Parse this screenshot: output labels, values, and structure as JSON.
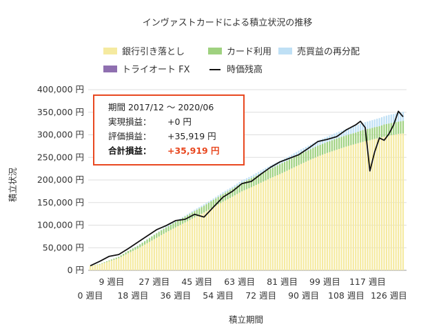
{
  "chart_data": {
    "type": "bar",
    "title": "インヴァストカードによる積立状況の推移",
    "xlabel": "積立期間",
    "ylabel": "積立状況",
    "ylim": [
      0,
      400000
    ],
    "yticks": [
      "0 円",
      "50,000 円",
      "100,000 円",
      "150,000 円",
      "200,000 円",
      "250,000 円",
      "300,000 円",
      "350,000 円",
      "400,000 円"
    ],
    "xticks_row1": [
      "9 週目",
      "27 週目",
      "45 週目",
      "63 週目",
      "81 週目",
      "99 週目",
      "117 週目"
    ],
    "xticks_row2": [
      "0 週目",
      "18 週目",
      "36 週目",
      "54 週目",
      "72 週目",
      "90 週目",
      "108 週目",
      "126 週目"
    ],
    "legend": [
      {
        "name": "銀行引き落とし",
        "color": "#f5eaa0",
        "kind": "box"
      },
      {
        "name": "カード利用",
        "color": "#9fd17f",
        "kind": "box"
      },
      {
        "name": "売買益の再分配",
        "color": "#bfe0f5",
        "kind": "box"
      },
      {
        "name": "トライオート FX",
        "color": "#8f6fb0",
        "kind": "box"
      },
      {
        "name": "時価残高",
        "color": "#111111",
        "kind": "line"
      }
    ],
    "series_weeks": [
      0,
      4,
      8,
      12,
      16,
      20,
      24,
      28,
      32,
      36,
      40,
      44,
      48,
      52,
      56,
      60,
      64,
      68,
      72,
      76,
      80,
      84,
      88,
      92,
      96,
      100,
      104,
      108,
      112,
      114,
      116,
      118,
      120,
      122,
      124,
      126,
      128,
      130,
      132
    ],
    "bank": [
      10000,
      13000,
      20000,
      27000,
      38000,
      48000,
      60000,
      72000,
      84000,
      95000,
      106000,
      117000,
      128000,
      140000,
      152000,
      163000,
      175000,
      184000,
      194000,
      204000,
      213000,
      223000,
      233000,
      243000,
      252000,
      260000,
      267000,
      274000,
      280000,
      283000,
      286000,
      288000,
      291000,
      293000,
      296000,
      298000,
      300000,
      302000,
      303000
    ],
    "card": [
      0,
      1000,
      2000,
      3000,
      5000,
      6000,
      8000,
      10000,
      11000,
      12000,
      13000,
      14000,
      15000,
      16000,
      17000,
      18000,
      19000,
      20000,
      21000,
      21000,
      22000,
      22000,
      23000,
      23000,
      24000,
      24000,
      25000,
      25000,
      25000,
      26000,
      26000,
      26000,
      26000,
      26000,
      27000,
      27000,
      27000,
      27000,
      28000
    ],
    "redistribution": [
      0,
      0,
      0,
      0,
      0,
      1000,
      1000,
      1000,
      2000,
      2000,
      2000,
      3000,
      3000,
      3000,
      4000,
      4000,
      5000,
      5000,
      6000,
      7000,
      7000,
      8000,
      9000,
      10000,
      11000,
      12000,
      13000,
      14000,
      15000,
      16000,
      16000,
      17000,
      17000,
      18000,
      18000,
      19000,
      19000,
      20000,
      20000
    ],
    "market_value": [
      10000,
      20000,
      31000,
      35000,
      48000,
      62000,
      76000,
      90000,
      99000,
      110000,
      113000,
      124000,
      118000,
      140000,
      162000,
      175000,
      192000,
      197000,
      213000,
      228000,
      240000,
      248000,
      256000,
      270000,
      285000,
      290000,
      296000,
      311000,
      322000,
      330000,
      316000,
      220000,
      262000,
      293000,
      288000,
      302000,
      322000,
      352000,
      340000
    ],
    "info": {
      "period_label": "期間 2017/12 ～ 2020/06",
      "realized_label": "実現損益：",
      "realized_value": "+0 円",
      "unrealized_label": "評価損益：",
      "unrealized_value": "+35,919 円",
      "total_label": "合計損益：",
      "total_value": "+35,919 円"
    },
    "grid": true,
    "legend_position": "top"
  }
}
